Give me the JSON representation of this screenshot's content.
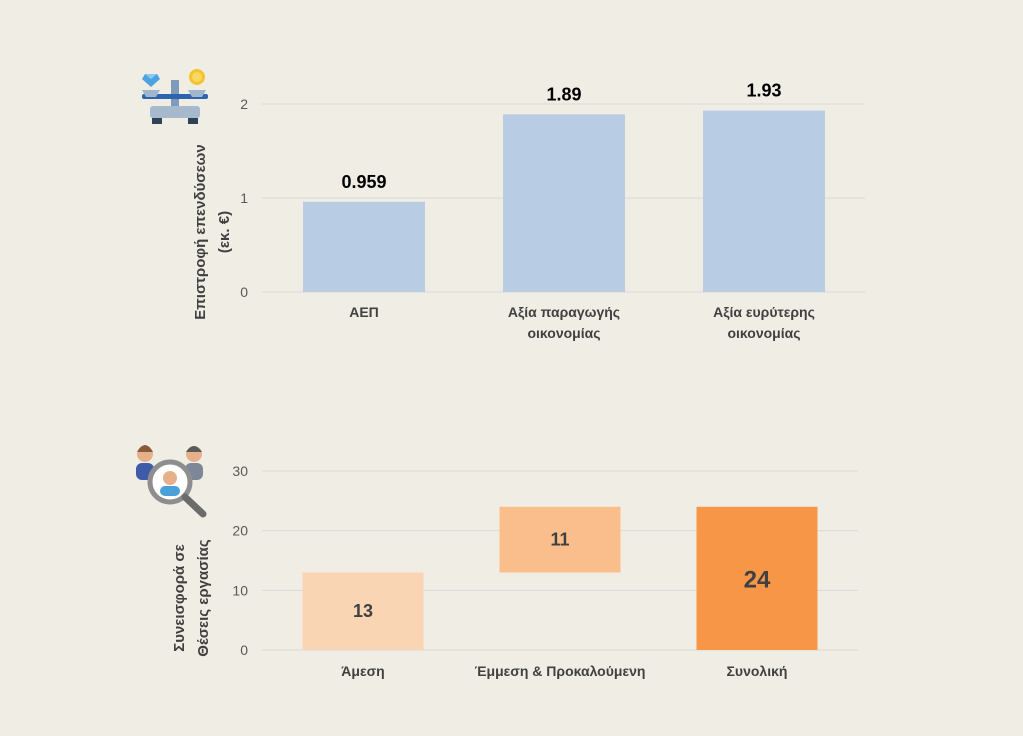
{
  "colors": {
    "background": "#efede4",
    "bar_blue": "#b8cce4",
    "bar_light_orange": "#fad5b4",
    "bar_mid_orange": "#f9be8c",
    "bar_dark_orange": "#f79646",
    "gridline": "#d9d9d9"
  },
  "icons": {
    "investment": "balance-scale-icon",
    "jobs": "people-search-icon"
  },
  "chart_data": [
    {
      "type": "bar",
      "ylabel_lines": [
        "Επιστροφή επενδύσεων",
        "(εκ. €)"
      ],
      "categories": [
        [
          "ΑΕΠ"
        ],
        [
          "Αξία παραγωγής",
          "οικονομίας"
        ],
        [
          "Αξία ευρύτερης",
          "οικονομίας"
        ]
      ],
      "values": [
        0.959,
        1.89,
        1.93
      ],
      "value_labels": [
        "0.959",
        "1.89",
        "1.93"
      ],
      "yticks": [
        "0",
        "1",
        "2"
      ],
      "ylim": [
        0,
        2
      ],
      "grid": true
    },
    {
      "type": "bar",
      "subtype": "waterfall",
      "ylabel_lines": [
        "Συνεισφορά σε",
        "Θέσεις εργασίας"
      ],
      "categories": [
        [
          "Άμεση"
        ],
        [
          "Έμμεση & Προκαλούμενη"
        ],
        [
          "Συνολική"
        ]
      ],
      "bases": [
        0,
        13,
        0
      ],
      "values": [
        13,
        11,
        24
      ],
      "value_labels": [
        "13",
        "11",
        "24"
      ],
      "yticks": [
        "0",
        "10",
        "20",
        "30"
      ],
      "ylim": [
        0,
        30
      ],
      "grid": true
    }
  ]
}
